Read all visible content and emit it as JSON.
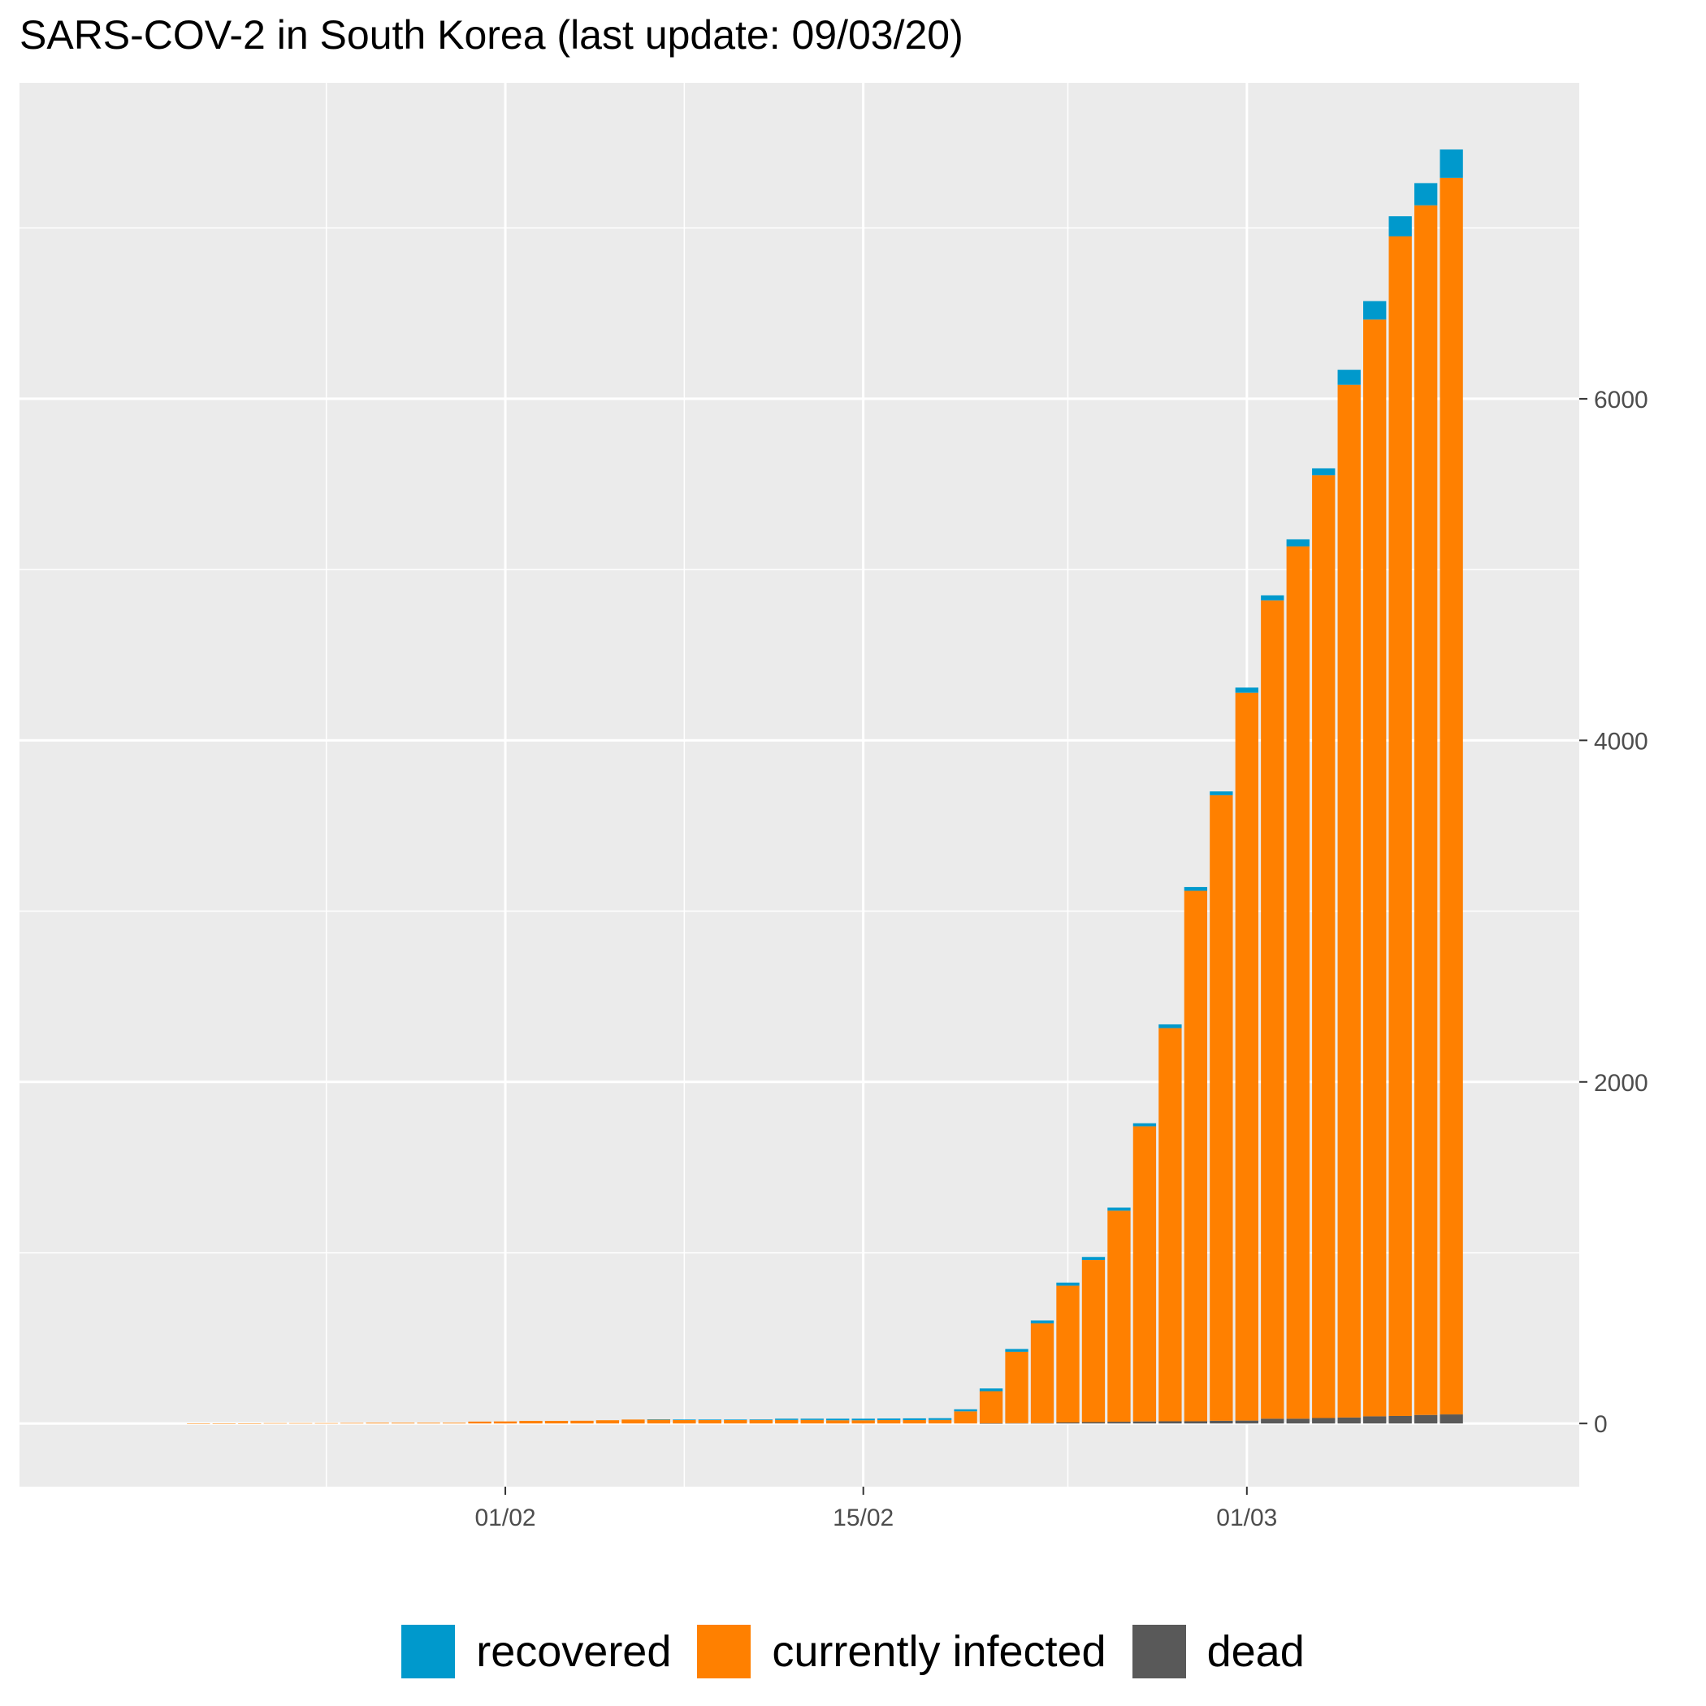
{
  "chart_data": {
    "type": "bar",
    "stacked": true,
    "title": "SARS-COV-2 in South Korea (last update: 09/03/20)",
    "xlabel": "",
    "ylabel": "",
    "y_axis_position": "right",
    "ylim": [
      -370,
      7850
    ],
    "y_ticks": [
      0,
      2000,
      4000,
      6000
    ],
    "x_ticks": [
      {
        "label": "01/02",
        "date": "2020-02-01"
      },
      {
        "label": "15/02",
        "date": "2020-02-15"
      },
      {
        "label": "01/03",
        "date": "2020-03-01"
      }
    ],
    "x_range": [
      "2020-01-13",
      "2020-03-14"
    ],
    "grid": true,
    "legend_position": "bottom",
    "colors": {
      "recovered": "#0099CC",
      "currently_infected": "#FF8000",
      "dead": "#595959"
    },
    "dates": [
      "2020-01-20",
      "2020-01-21",
      "2020-01-22",
      "2020-01-23",
      "2020-01-24",
      "2020-01-25",
      "2020-01-26",
      "2020-01-27",
      "2020-01-28",
      "2020-01-29",
      "2020-01-30",
      "2020-01-31",
      "2020-02-01",
      "2020-02-02",
      "2020-02-03",
      "2020-02-04",
      "2020-02-05",
      "2020-02-06",
      "2020-02-07",
      "2020-02-08",
      "2020-02-09",
      "2020-02-10",
      "2020-02-11",
      "2020-02-12",
      "2020-02-13",
      "2020-02-14",
      "2020-02-15",
      "2020-02-16",
      "2020-02-17",
      "2020-02-18",
      "2020-02-19",
      "2020-02-20",
      "2020-02-21",
      "2020-02-22",
      "2020-02-23",
      "2020-02-24",
      "2020-02-25",
      "2020-02-26",
      "2020-02-27",
      "2020-02-28",
      "2020-02-29",
      "2020-03-01",
      "2020-03-02",
      "2020-03-03",
      "2020-03-04",
      "2020-03-05",
      "2020-03-06",
      "2020-03-07",
      "2020-03-08",
      "2020-03-09"
    ],
    "series": [
      {
        "name": "dead",
        "values": [
          0,
          0,
          0,
          0,
          0,
          0,
          0,
          0,
          0,
          0,
          0,
          0,
          0,
          0,
          0,
          0,
          0,
          0,
          0,
          0,
          0,
          0,
          0,
          0,
          0,
          0,
          0,
          0,
          0,
          0,
          0,
          1,
          2,
          2,
          6,
          8,
          10,
          12,
          13,
          13,
          16,
          17,
          28,
          28,
          32,
          35,
          42,
          44,
          50,
          53
        ]
      },
      {
        "name": "currently infected",
        "values": [
          1,
          1,
          1,
          2,
          2,
          2,
          3,
          4,
          4,
          4,
          4,
          11,
          12,
          15,
          15,
          16,
          19,
          23,
          23,
          20,
          20,
          20,
          21,
          21,
          21,
          19,
          19,
          20,
          20,
          21,
          71,
          188,
          418,
          584,
          801,
          949,
          1236,
          1728,
          2302,
          3106,
          3663,
          4262,
          4791,
          5108,
          5520,
          6047,
          6422,
          6907,
          7083,
          7241
        ]
      },
      {
        "name": "recovered",
        "values": [
          0,
          0,
          0,
          0,
          0,
          0,
          0,
          0,
          0,
          0,
          0,
          0,
          0,
          0,
          0,
          0,
          0,
          0,
          1,
          3,
          3,
          3,
          3,
          7,
          7,
          9,
          9,
          9,
          10,
          10,
          12,
          16,
          16,
          17,
          18,
          18,
          18,
          18,
          22,
          22,
          22,
          30,
          30,
          41,
          41,
          88,
          108,
          118,
          130,
          166
        ]
      }
    ]
  },
  "legend": {
    "items": [
      {
        "key": "recovered",
        "label": "recovered",
        "color": "#0099CC"
      },
      {
        "key": "currently_infected",
        "label": "currently infected",
        "color": "#FF8000"
      },
      {
        "key": "dead",
        "label": "dead",
        "color": "#595959"
      }
    ]
  }
}
